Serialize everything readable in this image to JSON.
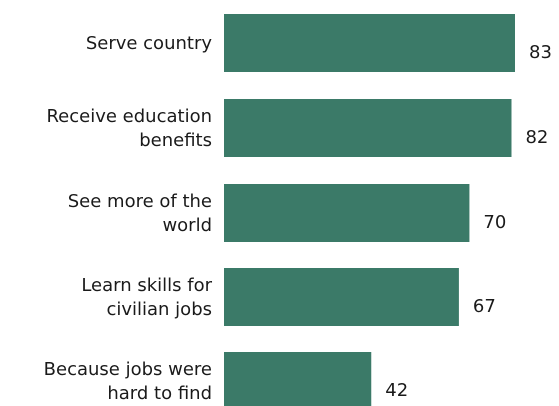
{
  "chart_data": {
    "type": "bar",
    "orientation": "horizontal",
    "categories": [
      [
        "Serve country"
      ],
      [
        "Receive education",
        "benefits"
      ],
      [
        "See more of the",
        "world"
      ],
      [
        "Learn skills for",
        "civilian jobs"
      ],
      [
        "Because jobs were",
        "hard to find"
      ]
    ],
    "values": [
      83,
      82,
      70,
      67,
      42
    ],
    "value_labels": [
      "83",
      "82",
      "70",
      "67",
      "42"
    ],
    "title": "",
    "xlabel": "",
    "ylabel": "",
    "xlim": [
      0,
      83
    ],
    "grid": false,
    "legend": "none",
    "bar_color": "#3b7a68"
  }
}
